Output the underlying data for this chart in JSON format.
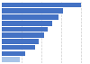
{
  "values": [
    100,
    77,
    72,
    64,
    58,
    54,
    47,
    42,
    29,
    23
  ],
  "bar_colors": [
    "#4472c4",
    "#4472c4",
    "#4472c4",
    "#4472c4",
    "#4472c4",
    "#4472c4",
    "#4472c4",
    "#4472c4",
    "#4472c4",
    "#a8c4e8"
  ],
  "background_color": "#ffffff",
  "plot_bg_color": "#ffffff",
  "xlim": [
    0,
    108
  ],
  "bar_height": 0.82,
  "n_bars": 10,
  "gridline_color": "#cccccc",
  "gridline_style": "--"
}
